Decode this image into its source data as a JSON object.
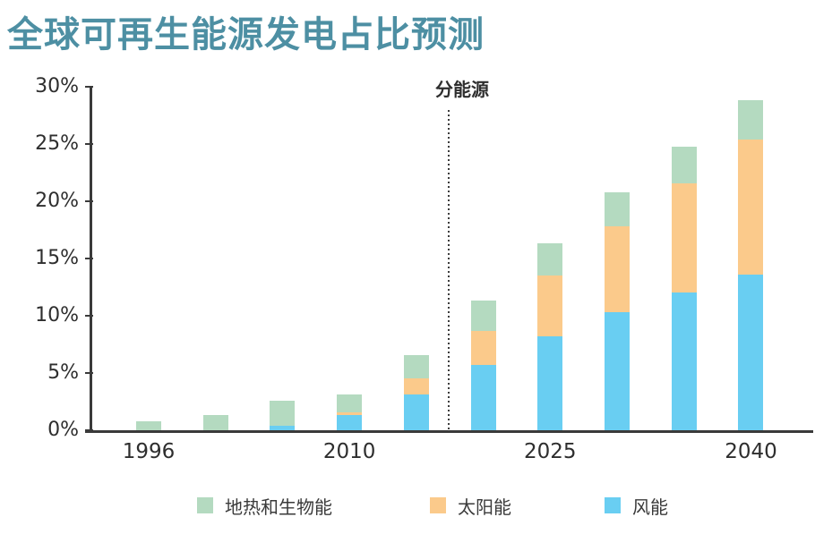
{
  "colors": {
    "title": "#4D8FA3",
    "axis": "#3A3A3A",
    "text": "#2E2E2E"
  },
  "chart_data": {
    "type": "bar",
    "stacked": true,
    "title": "全球可再生能源发电占比预测",
    "annotation": "分能源",
    "unit": "%",
    "ylim": [
      0,
      30
    ],
    "grid": false,
    "legend_position": "bottom",
    "y_tick_labels": [
      "0%",
      "5%",
      "10%",
      "15%",
      "20%",
      "25%",
      "30%"
    ],
    "x_labels": [
      {
        "text": "1996",
        "bar": 0
      },
      {
        "text": "2010",
        "bar": 3
      },
      {
        "text": "2025",
        "bar": 6
      },
      {
        "text": "2040",
        "bar": 9
      }
    ],
    "divider": {
      "after_bar": 4
    },
    "series": [
      {
        "key": "wind",
        "name": "风能",
        "color": "#69CEF2",
        "values": [
          0,
          0,
          0.4,
          1.3,
          3.1,
          5.7,
          8.2,
          10.3,
          12.0,
          13.6
        ]
      },
      {
        "key": "solar",
        "name": "太阳能",
        "color": "#FBCA8B",
        "values": [
          0,
          0,
          0,
          0.3,
          1.4,
          3.0,
          5.3,
          7.5,
          9.6,
          11.8
        ]
      },
      {
        "key": "geo-bio",
        "name": "地热和生物能",
        "color": "#B4DAC0",
        "values": [
          0.8,
          1.3,
          2.2,
          1.5,
          2.1,
          2.6,
          2.8,
          3.0,
          3.2,
          3.4
        ]
      }
    ],
    "totals": [
      0.8,
      1.3,
      2.6,
      3.1,
      6.6,
      11.3,
      16.3,
      20.8,
      24.8,
      28.8
    ]
  }
}
